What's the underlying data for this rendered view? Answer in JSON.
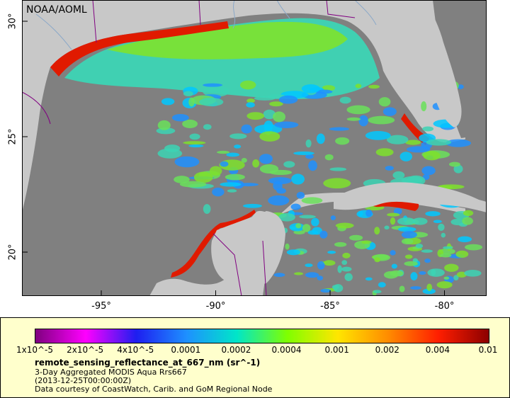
{
  "map": {
    "credit": "NOAA/AOML",
    "lat_labels": [
      {
        "text": "30°",
        "lat": 30
      },
      {
        "text": "25°",
        "lat": 25
      },
      {
        "text": "20°",
        "lat": 20
      }
    ],
    "lon_labels": [
      {
        "text": "-95°",
        "lon": -95
      },
      {
        "text": "-90°",
        "lon": -90
      },
      {
        "text": "-85°",
        "lon": -85
      },
      {
        "text": "-80°",
        "lon": -80
      }
    ],
    "colors": {
      "land": "#c8c8c8",
      "no_data": "#808080",
      "border": "#800080",
      "river": "#8aa8c8"
    }
  },
  "legend": {
    "colorbar_ticks": [
      "1x10^-5",
      "2x10^-5",
      "4x10^-5",
      "0.0001",
      "0.0002",
      "0.0004",
      "0.001",
      "0.002",
      "0.004",
      "0.01"
    ],
    "colorbar_colors": [
      "#7f007f",
      "#ff00ff",
      "#1e1ef0",
      "#1e90ff",
      "#00e6c8",
      "#7fff00",
      "#ffe600",
      "#ff8c00",
      "#ff1e00",
      "#8c0000"
    ],
    "variable": "remote_sensing_reflectance_at_667_nm (sr^-1)",
    "line1": "3-Day Aggregated MODIS Aqua Rrs667",
    "line2": "(2013-12-25T00:00:00Z)",
    "line3": "Data courtesy of CoastWatch, Carib. and GoM Regional Node"
  }
}
